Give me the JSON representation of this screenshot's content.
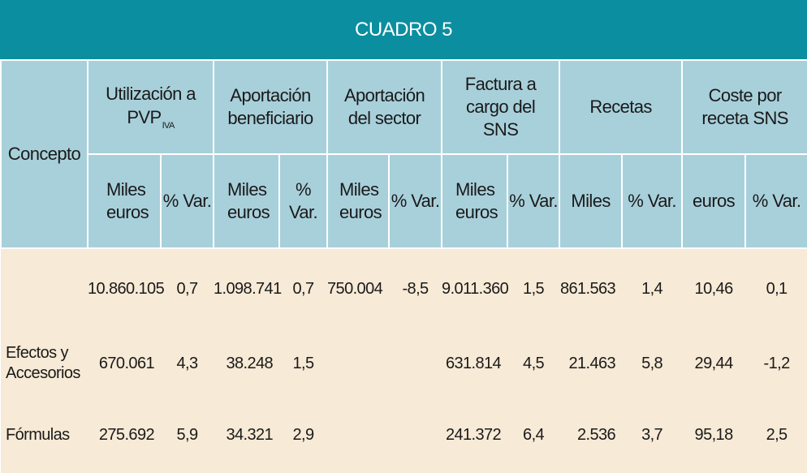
{
  "title": "CUADRO 5",
  "header": {
    "concepto": "Concepto",
    "groups": [
      {
        "label": "Utilización a PVP",
        "subscript": "IVA"
      },
      {
        "label": "Aportación beneficiario",
        "subscript": ""
      },
      {
        "label": "Aportación del sector",
        "subscript": ""
      },
      {
        "label": "Factura a cargo del SNS",
        "subscript": ""
      },
      {
        "label": "Recetas",
        "subscript": ""
      },
      {
        "label": "Coste por receta SNS",
        "subscript": ""
      }
    ],
    "subheaders": [
      "Miles euros",
      "% Var.",
      "Miles euros",
      "% Var.",
      "Miles euros",
      "% Var.",
      "Miles euros",
      "% Var.",
      "Miles",
      "% Var.",
      "euros",
      "% Var."
    ]
  },
  "rows": [
    {
      "concepto": "",
      "cells": [
        "10.860.105",
        "0,7",
        "1.098.741",
        "0,7",
        "750.004",
        "-8,5",
        "9.011.360",
        "1,5",
        "861.563",
        "1,4",
        "10,46",
        "0,1"
      ]
    },
    {
      "concepto": "Efectos y Accesorios",
      "cells": [
        "670.061",
        "4,3",
        "38.248",
        "1,5",
        "",
        "",
        "631.814",
        "4,5",
        "21.463",
        "5,8",
        "29,44",
        "-1,2"
      ]
    },
    {
      "concepto": "Fórmulas",
      "cells": [
        "275.692",
        "5,9",
        "34.321",
        "2,9",
        "",
        "",
        "241.372",
        "6,4",
        "2.536",
        "3,7",
        "95,18",
        "2,5"
      ]
    }
  ]
}
